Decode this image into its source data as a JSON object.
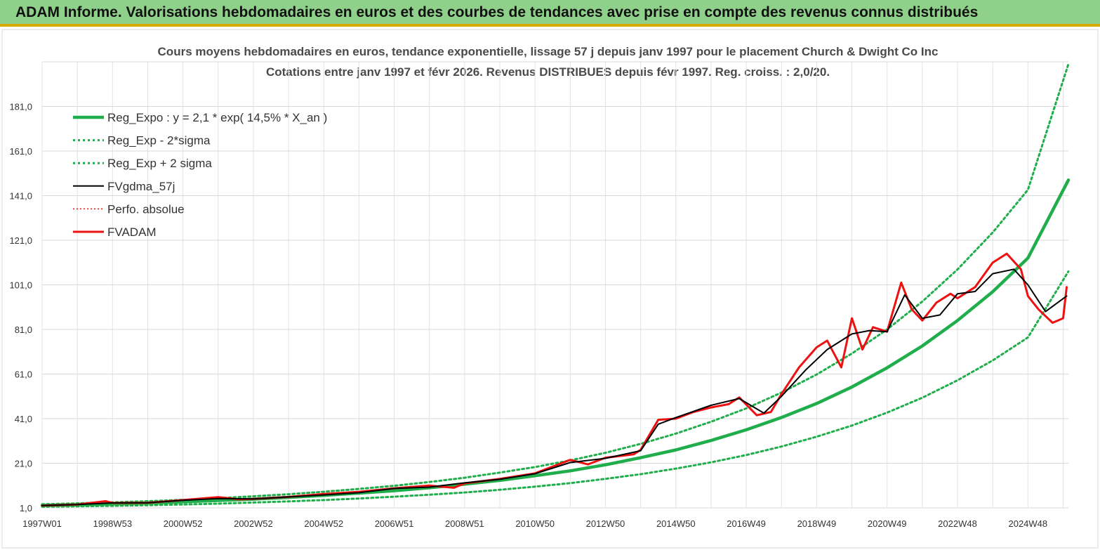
{
  "banner": {
    "title": "ADAM Informe. Valorisations hebdomadaires en euros et des courbes de tendances avec prise en compte des revenus connus distribués"
  },
  "chart_data": {
    "type": "line",
    "title": "Cours moyens hebdomadaires en euros, tendance exponentielle, lissage 57 j depuis janv 1997 pour le placement Church & Dwight Co Inc",
    "subtitle": "Cotations entre janv 1997 et févr 2026. Revenus DISTRIBUES depuis févr 1997. Reg. croiss. : 2,0/20.",
    "xlabel": "",
    "ylabel": "",
    "x_tick_labels": [
      "1997W01",
      "1998W53",
      "2000W52",
      "2002W52",
      "2004W52",
      "2006W51",
      "2008W51",
      "2010W50",
      "2012W50",
      "2014W50",
      "2016W49",
      "2018W49",
      "2020W49",
      "2022W48",
      "2024W48"
    ],
    "y_tick_labels": [
      "1,0",
      "21,0",
      "41,0",
      "61,0",
      "81,0",
      "101,0",
      "121,0",
      "141,0",
      "161,0",
      "181,0"
    ],
    "xlim": [
      1997.0,
      2026.15
    ],
    "ylim": [
      1.0,
      201.0
    ],
    "grid": true,
    "legend_position": "top-left",
    "colors": {
      "trend": "#1fae4b",
      "smooth": "#000000",
      "price": "#ee1111",
      "perfo": "#ee1111"
    },
    "series": [
      {
        "name": "Reg_Expo : y = 2,1 * exp( 14,5% *  X_an )",
        "style": "solid-thick-green",
        "x": [
          1997,
          1998,
          1999,
          2000,
          2001,
          2002,
          2003,
          2004,
          2005,
          2006,
          2007,
          2008,
          2009,
          2010,
          2011,
          2012,
          2013,
          2014,
          2015,
          2016,
          2017,
          2018,
          2019,
          2020,
          2021,
          2022,
          2023,
          2024,
          2025,
          2026.15
        ],
        "y": [
          2.1,
          2.4,
          2.8,
          3.2,
          3.7,
          4.3,
          4.9,
          5.7,
          6.6,
          7.6,
          8.7,
          10.0,
          11.6,
          13.3,
          15.4,
          17.6,
          20.3,
          23.5,
          27.0,
          31.2,
          36.0,
          41.5,
          47.8,
          55.2,
          63.8,
          73.6,
          85.0,
          97.9,
          113.0,
          148.0
        ]
      },
      {
        "name": "Reg_Exp - 2*sigma",
        "style": "dotted-green",
        "x": [
          1997,
          1998,
          1999,
          2000,
          2001,
          2002,
          2003,
          2004,
          2005,
          2006,
          2007,
          2008,
          2009,
          2010,
          2011,
          2012,
          2013,
          2014,
          2015,
          2016,
          2017,
          2018,
          2019,
          2020,
          2021,
          2022,
          2023,
          2024,
          2025,
          2026.15
        ],
        "y": [
          1.5,
          1.7,
          1.9,
          2.2,
          2.5,
          2.9,
          3.4,
          3.9,
          4.5,
          5.2,
          6.0,
          6.9,
          7.9,
          9.1,
          10.5,
          12.1,
          14.0,
          16.1,
          18.6,
          21.4,
          24.7,
          28.5,
          32.9,
          37.9,
          43.7,
          50.4,
          58.2,
          67.1,
          77.4,
          107.0
        ]
      },
      {
        "name": "Reg_Exp + 2 sigma",
        "style": "dotted-green",
        "x": [
          1997,
          1998,
          1999,
          2000,
          2001,
          2002,
          2003,
          2004,
          2005,
          2006,
          2007,
          2008,
          2009,
          2010,
          2011,
          2012,
          2013,
          2014,
          2015,
          2016,
          2017,
          2018,
          2019,
          2020,
          2021,
          2022,
          2023,
          2024,
          2025,
          2026.15
        ],
        "y": [
          2.6,
          3.0,
          3.5,
          4.0,
          4.6,
          5.3,
          6.2,
          7.1,
          8.2,
          9.5,
          10.9,
          12.6,
          14.5,
          16.8,
          19.3,
          22.3,
          25.7,
          29.7,
          34.3,
          39.6,
          45.6,
          52.7,
          60.8,
          70.2,
          81.0,
          93.5,
          107.9,
          124.5,
          143.6,
          200.0
        ]
      },
      {
        "name": "FVgdma_57j",
        "style": "solid-black",
        "x": [
          1997,
          1998,
          1999,
          2000,
          2001,
          2002,
          2003,
          2004,
          2005,
          2006,
          2007,
          2008,
          2009,
          2010,
          2011,
          2012,
          2013,
          2014,
          2014.5,
          2015,
          2016,
          2016.8,
          2017.5,
          2018,
          2018.7,
          2019.3,
          2020,
          2020.5,
          2021,
          2021.5,
          2022,
          2022.5,
          2023,
          2023.5,
          2024,
          2024.6,
          2025,
          2025.5,
          2026.1
        ],
        "y": [
          2.0,
          2.5,
          3.2,
          3.3,
          4.4,
          5.2,
          5.0,
          5.9,
          6.8,
          7.8,
          9.7,
          10.3,
          12.2,
          13.8,
          16.3,
          21.3,
          23.2,
          26.6,
          38.5,
          41.5,
          47.0,
          50.0,
          43.5,
          51.0,
          63.0,
          72.0,
          79.0,
          80.5,
          80.0,
          96.5,
          86.0,
          87.5,
          97.0,
          98.0,
          106.0,
          108.0,
          101.0,
          89.0,
          96.0
        ]
      },
      {
        "name": "Perfo. absolue",
        "style": "dotted-red",
        "x": [],
        "y": []
      },
      {
        "name": "FVADAM",
        "style": "solid-thick-red",
        "x": [
          1997,
          1998,
          1998.8,
          1999,
          2000,
          2001,
          2002,
          2002.6,
          2003,
          2004,
          2005,
          2006,
          2007,
          2008,
          2008.7,
          2009,
          2010,
          2011,
          2012,
          2012.5,
          2013,
          2013.8,
          2014,
          2014.5,
          2015,
          2015.5,
          2016,
          2016.5,
          2016.8,
          2017.3,
          2017.7,
          2018,
          2018.5,
          2019,
          2019.3,
          2019.7,
          2020,
          2020.3,
          2020.6,
          2021,
          2021.4,
          2021.7,
          2022,
          2022.4,
          2022.8,
          2023,
          2023.5,
          2024,
          2024.4,
          2024.8,
          2025,
          2025.3,
          2025.7,
          2026,
          2026.1
        ],
        "y": [
          2.0,
          2.5,
          4.0,
          3.2,
          3.3,
          4.5,
          5.8,
          4.8,
          5.0,
          5.9,
          7.2,
          8.2,
          9.8,
          11.0,
          10.0,
          12.0,
          14.0,
          16.5,
          22.5,
          20.5,
          23.5,
          25.0,
          27.0,
          40.5,
          41.0,
          44.0,
          46.0,
          47.5,
          50.5,
          42.5,
          44.0,
          52.0,
          64.0,
          73.0,
          76.0,
          64.0,
          86.0,
          72.0,
          82.0,
          80.0,
          102.0,
          90.0,
          85.0,
          93.0,
          97.0,
          95.0,
          100.0,
          111.0,
          115.0,
          108.0,
          96.0,
          90.0,
          84.0,
          86.0,
          100.0
        ]
      }
    ]
  }
}
